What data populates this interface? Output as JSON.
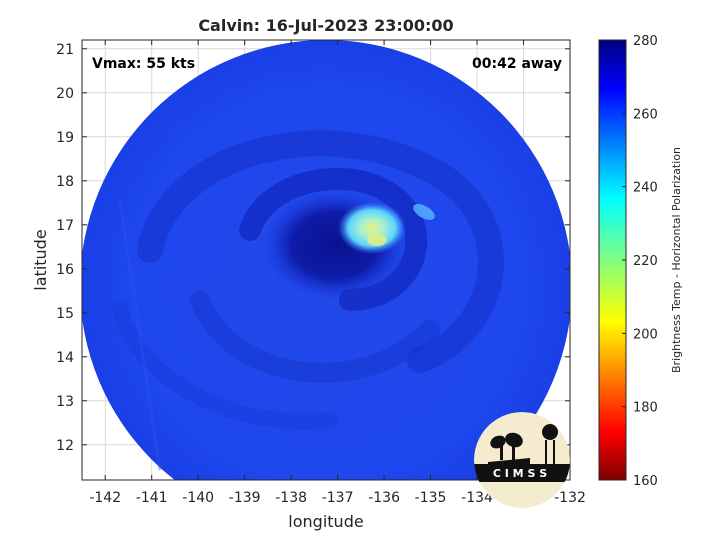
{
  "title": "Calvin: 16-Jul-2023 23:00:00",
  "vmax_label": "Vmax: 55 kts",
  "time_label": "00:42 away",
  "xlabel": "longitude",
  "ylabel": "latitude",
  "colorbar_label": "Brightness Temp - Horizontal Polarization",
  "logo_text": "C I M S S",
  "colors": {
    "background": "#1f45e6",
    "deep_blue": "#0d1aa8",
    "mid_blue": "#2e5cf0",
    "cyan": "#7fe6ff",
    "yellow_green": "#d8f070"
  },
  "chart_data": {
    "type": "heatmap",
    "title": "Calvin: 16-Jul-2023 23:00:00",
    "xlabel": "longitude",
    "ylabel": "latitude",
    "xlim": [
      -142.5,
      -132
    ],
    "ylim": [
      11.2,
      21.2
    ],
    "x_ticks": [
      -142,
      -141,
      -140,
      -139,
      -138,
      -137,
      -136,
      -135,
      -134,
      -133,
      -132
    ],
    "y_ticks": [
      12,
      13,
      14,
      15,
      16,
      17,
      18,
      19,
      20,
      21
    ],
    "grid": true,
    "colorbar": {
      "label": "Brightness Temp - Horizontal Polarization",
      "range": [
        160,
        280
      ],
      "ticks": [
        160,
        180,
        200,
        220,
        240,
        260,
        280
      ],
      "colormap": "jet"
    },
    "swath": {
      "center_lon": -137.3,
      "center_lat": 15.3,
      "radius_deg": 5.2
    },
    "storm_center": {
      "lon": -136.5,
      "lat": 16.7
    },
    "annotations": [
      "Vmax: 55 kts",
      "00:42 away"
    ]
  }
}
